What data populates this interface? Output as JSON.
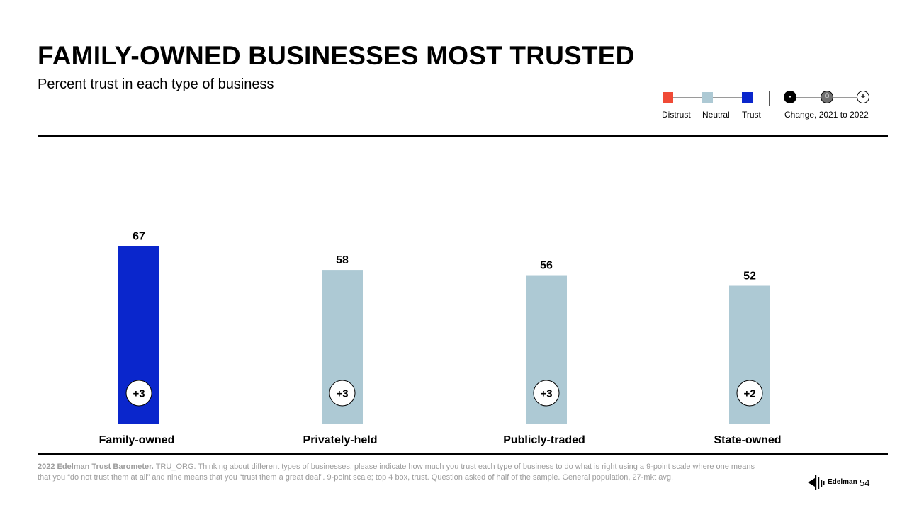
{
  "header": {
    "title": "FAMILY-OWNED BUSINESSES MOST TRUSTED",
    "subtitle": "Percent trust in each type of business"
  },
  "legend": {
    "distrust": {
      "label": "Distrust",
      "color": "#f04a36"
    },
    "neutral": {
      "label": "Neutral",
      "color": "#adc9d4"
    },
    "trust": {
      "label": "Trust",
      "color": "#0a26cc"
    },
    "change_symbols": {
      "minus": "-",
      "zero": "0",
      "plus": "+"
    },
    "change_label": "Change, 2021 to 2022"
  },
  "chart_data": {
    "type": "bar",
    "categories": [
      "Family-owned",
      "Privately-held",
      "Publicly-traded",
      "State-owned"
    ],
    "values": [
      67,
      58,
      56,
      52
    ],
    "value_labels": [
      "67",
      "58",
      "56",
      "52"
    ],
    "changes": [
      "+3",
      "+3",
      "+3",
      "+2"
    ],
    "colors": [
      "#0a26cc",
      "#adc9d4",
      "#adc9d4",
      "#adc9d4"
    ],
    "title": "",
    "xlabel": "",
    "ylabel": "",
    "ylim": [
      0,
      100
    ],
    "grid": false
  },
  "footnote": {
    "source_bold": "2022 Edelman Trust Barometer.",
    "text": " TRU_ORG. Thinking about different types of businesses, please indicate how much you trust each type of business to do what is right using a 9-point scale where one means that you “do not trust them at all” and nine means that you “trust them a great deal”. 9-point scale; top 4 box, trust. Question asked of half of the sample. General population, 27-mkt avg."
  },
  "branding": {
    "name": "Edelman",
    "page_number": "54"
  }
}
